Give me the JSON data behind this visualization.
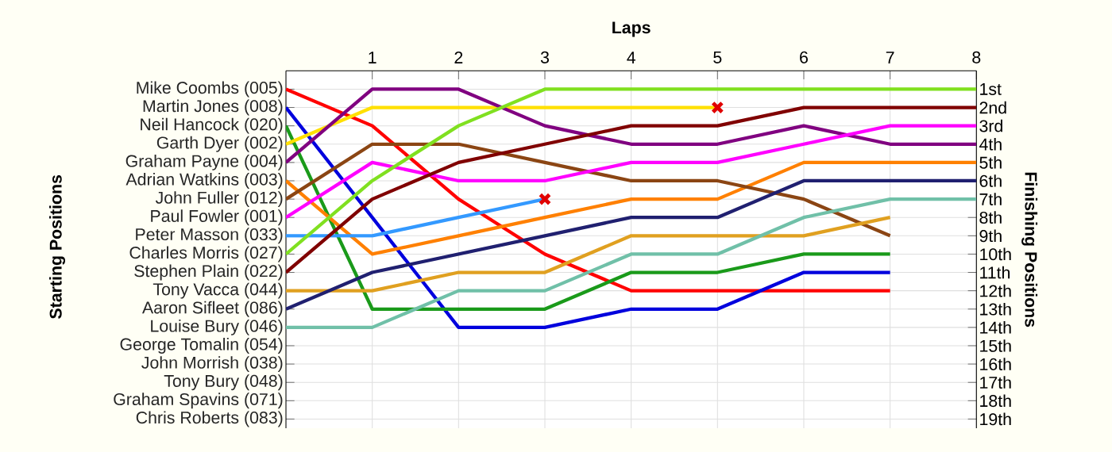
{
  "chart_data": {
    "type": "line",
    "xlabel": "Laps",
    "y2label": "Finishing Positions",
    "grid": true,
    "x": [
      0,
      1,
      2,
      3,
      4,
      5,
      6,
      7,
      8
    ],
    "xlim": [
      0,
      8
    ],
    "xticks": [
      1,
      2,
      3,
      4,
      5,
      6,
      7,
      8
    ],
    "y2lim": [
      19.5,
      0
    ],
    "y2ticks": [
      {
        "value": 1,
        "label": "1st"
      },
      {
        "value": 2,
        "label": "2nd"
      },
      {
        "value": 3,
        "label": "3rd"
      },
      {
        "value": 4,
        "label": "4th"
      },
      {
        "value": 5,
        "label": "5th"
      },
      {
        "value": 6,
        "label": "6th"
      },
      {
        "value": 7,
        "label": "7th"
      },
      {
        "value": 8,
        "label": "8th"
      },
      {
        "value": 9,
        "label": "9th"
      },
      {
        "value": 10,
        "label": "10th"
      },
      {
        "value": 11,
        "label": "11th"
      },
      {
        "value": 12,
        "label": "12th"
      },
      {
        "value": 13,
        "label": "13th"
      },
      {
        "value": 14,
        "label": "14th"
      },
      {
        "value": 15,
        "label": "15th"
      },
      {
        "value": 16,
        "label": "16th"
      },
      {
        "value": 17,
        "label": "17th"
      },
      {
        "value": 18,
        "label": "18th"
      },
      {
        "value": 19,
        "label": "19th"
      }
    ],
    "annotations": [
      "Mike Coombs (005)",
      "Martin Jones (008)",
      "Neil Hancock (020)",
      "Garth Dyer (002)",
      "Graham Payne (004)",
      "Adrian Watkins (003)",
      "John Fuller (012)",
      "Paul Fowler (001)",
      "Peter Masson (033)",
      "Charles Morris (027)",
      "Stephen Plain (022)",
      "Tony Vacca (044)",
      "Aaron Sifleet (086)",
      "Louise Bury (046)",
      "George Tomalin (054)",
      "John Morrish (038)",
      "Tony Bury (048)",
      "Graham Spavins (071)",
      "Chris Roberts (083)",
      "Starting Positions"
    ],
    "series": [
      {
        "axis": "y2",
        "color": "#ff0000",
        "values": [
          1,
          3,
          7,
          10,
          12,
          12,
          12,
          12,
          null
        ]
      },
      {
        "axis": "y2",
        "color": "#0000dd",
        "values": [
          2,
          8,
          14,
          14,
          13,
          13,
          11,
          11,
          null
        ]
      },
      {
        "axis": "y2",
        "color": "#1a9a1a",
        "values": [
          3,
          13,
          13,
          13,
          11,
          11,
          10,
          10,
          null
        ]
      },
      {
        "axis": "y2",
        "color": "#ffe000",
        "values": [
          4,
          2,
          2,
          2,
          2,
          2,
          null,
          null,
          null
        ]
      },
      {
        "axis": "y2",
        "color": "#800080",
        "values": [
          5,
          1,
          1,
          3,
          4,
          4,
          3,
          4,
          4
        ]
      },
      {
        "axis": "y2",
        "color": "#ff8000",
        "values": [
          6,
          10,
          9,
          8,
          7,
          7,
          5,
          5,
          5
        ]
      },
      {
        "axis": "y2",
        "color": "#8b4513",
        "values": [
          7,
          4,
          4,
          5,
          6,
          6,
          7,
          9,
          null
        ]
      },
      {
        "axis": "y2",
        "color": "#ff00ff",
        "values": [
          8,
          5,
          6,
          6,
          5,
          5,
          4,
          3,
          3
        ]
      },
      {
        "axis": "y2",
        "color": "#3399ff",
        "values": [
          9,
          9,
          8,
          7,
          null,
          null,
          null,
          null,
          null
        ]
      },
      {
        "axis": "y2",
        "color": "#80e020",
        "values": [
          10,
          6,
          3,
          1,
          1,
          1,
          1,
          1,
          1
        ]
      },
      {
        "axis": "y2",
        "color": "#800000",
        "values": [
          11,
          7,
          5,
          4,
          3,
          3,
          2,
          2,
          2
        ]
      },
      {
        "axis": "y2",
        "color": "#e0a020",
        "values": [
          12,
          12,
          11,
          11,
          9,
          9,
          9,
          8,
          null
        ]
      },
      {
        "axis": "y2",
        "color": "#202070",
        "values": [
          13,
          11,
          10,
          9,
          8,
          8,
          6,
          6,
          6
        ]
      },
      {
        "axis": "y2",
        "color": "#70c0a8",
        "values": [
          14,
          14,
          12,
          12,
          10,
          10,
          8,
          7,
          7
        ]
      },
      {
        "axis": "y2",
        "type": "scatter",
        "marker": "cross",
        "color": "#e00000",
        "x": [
          5,
          3
        ],
        "values": [
          2,
          7
        ]
      }
    ]
  }
}
